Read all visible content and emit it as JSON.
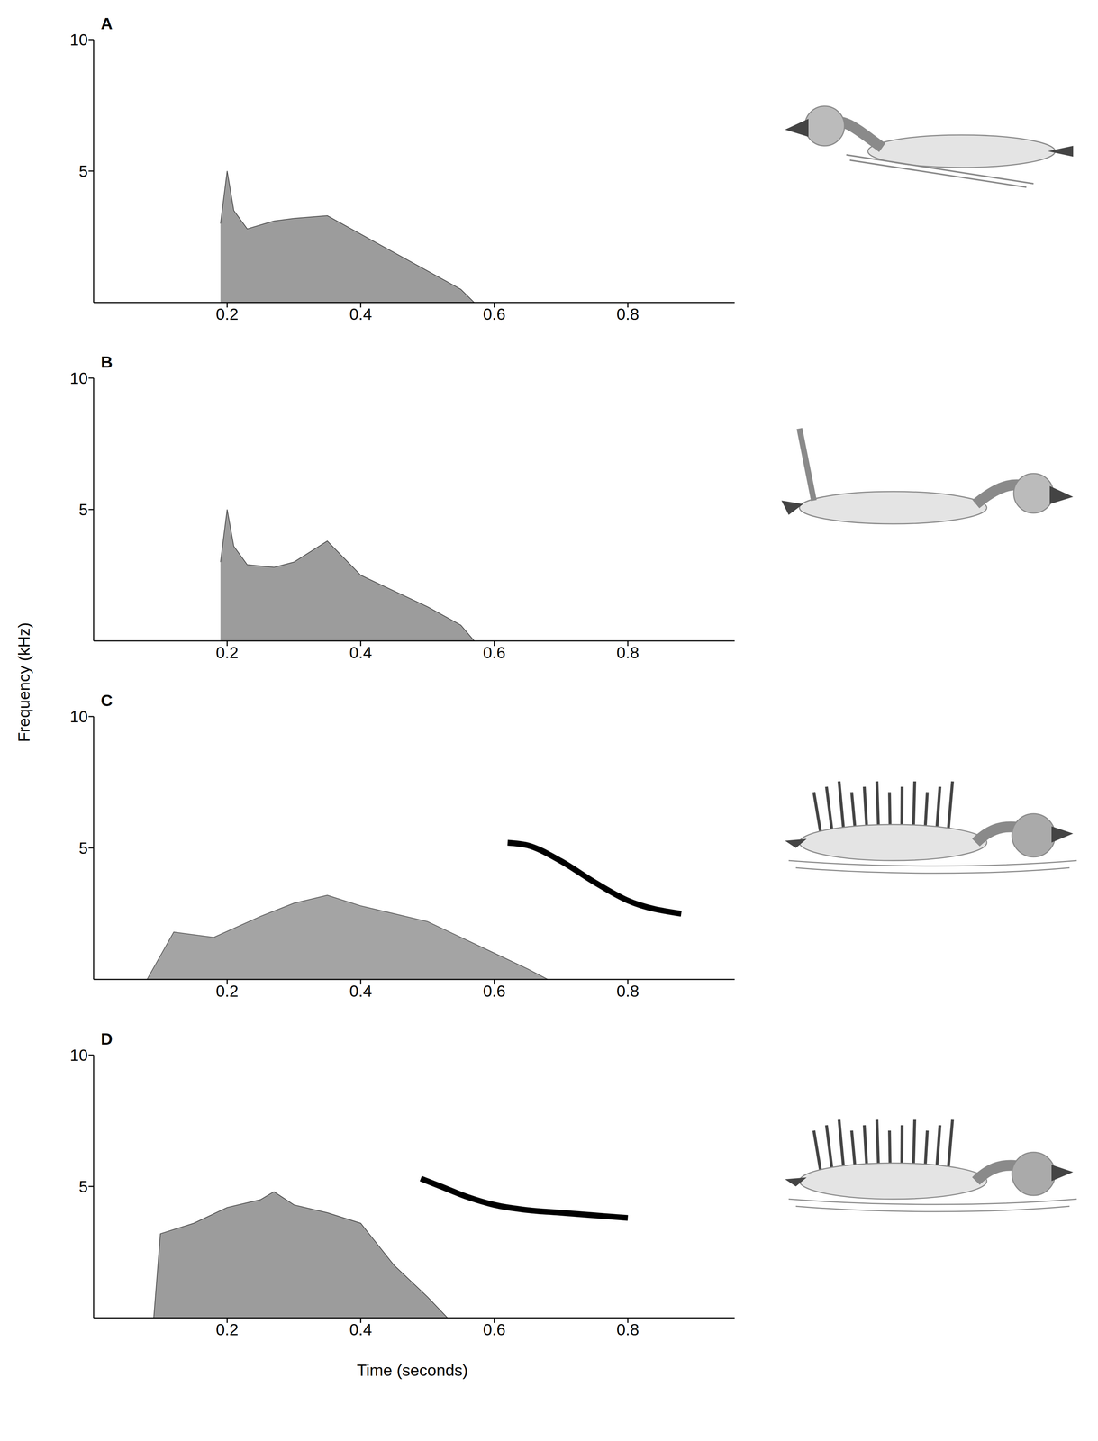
{
  "y_label": "Frequency (kHz)",
  "x_label": "Time (seconds)",
  "chart_data": [
    {
      "type": "spectrogram",
      "label": "A",
      "xlim": [
        0,
        0.96
      ],
      "xticks": [
        0.2,
        0.4,
        0.6,
        0.8
      ],
      "ylim": [
        0,
        10
      ],
      "yticks": [
        5,
        10
      ],
      "series": [
        {
          "type": "area",
          "color": "#4a4a4a",
          "x": [
            0.19,
            0.2,
            0.21,
            0.23,
            0.27,
            0.3,
            0.35,
            0.4,
            0.45,
            0.5,
            0.55,
            0.57
          ],
          "values": [
            3,
            5,
            3.5,
            2.8,
            3.1,
            3.2,
            3.3,
            2.6,
            1.9,
            1.2,
            0.5,
            0
          ]
        }
      ]
    },
    {
      "type": "spectrogram",
      "label": "B",
      "xlim": [
        0,
        0.96
      ],
      "xticks": [
        0.2,
        0.4,
        0.6,
        0.8
      ],
      "ylim": [
        0,
        10
      ],
      "yticks": [
        5,
        10
      ],
      "series": [
        {
          "type": "area",
          "color": "#4a4a4a",
          "x": [
            0.19,
            0.2,
            0.21,
            0.23,
            0.27,
            0.3,
            0.35,
            0.4,
            0.45,
            0.5,
            0.55,
            0.57
          ],
          "values": [
            3,
            5,
            3.6,
            2.9,
            2.8,
            3,
            3.8,
            2.5,
            1.9,
            1.3,
            0.6,
            0
          ]
        }
      ]
    },
    {
      "type": "spectrogram",
      "label": "C",
      "xlim": [
        0,
        0.96
      ],
      "xticks": [
        0.2,
        0.4,
        0.6,
        0.8
      ],
      "ylim": [
        0,
        10
      ],
      "yticks": [
        5,
        10
      ],
      "series": [
        {
          "type": "area",
          "color": "#5a5a5a",
          "x": [
            0.08,
            0.12,
            0.18,
            0.25,
            0.3,
            0.35,
            0.4,
            0.45,
            0.5,
            0.55,
            0.6,
            0.65,
            0.68
          ],
          "values": [
            0,
            1.8,
            1.6,
            2.4,
            2.9,
            3.2,
            2.8,
            2.5,
            2.2,
            1.6,
            1,
            0.4,
            0
          ]
        },
        {
          "type": "line",
          "color": "#000000",
          "x": [
            0.62,
            0.65,
            0.7,
            0.75,
            0.8,
            0.88
          ],
          "values": [
            5.2,
            5.1,
            4.5,
            3.7,
            3,
            2.5
          ]
        }
      ]
    },
    {
      "type": "spectrogram",
      "label": "D",
      "xlim": [
        0,
        0.96
      ],
      "xticks": [
        0.2,
        0.4,
        0.6,
        0.8
      ],
      "ylim": [
        0,
        10
      ],
      "yticks": [
        5,
        10
      ],
      "series": [
        {
          "type": "area",
          "color": "#4a4a4a",
          "x": [
            0.09,
            0.1,
            0.15,
            0.2,
            0.25,
            0.27,
            0.3,
            0.35,
            0.4,
            0.45,
            0.5,
            0.53
          ],
          "values": [
            0,
            3.2,
            3.6,
            4.2,
            4.5,
            4.8,
            4.3,
            4,
            3.6,
            2,
            0.8,
            0
          ]
        },
        {
          "type": "line",
          "color": "#000000",
          "x": [
            0.49,
            0.52,
            0.56,
            0.6,
            0.65,
            0.7,
            0.75,
            0.8
          ],
          "values": [
            5.3,
            5,
            4.6,
            4.3,
            4.1,
            4,
            3.9,
            3.8
          ]
        }
      ]
    }
  ]
}
